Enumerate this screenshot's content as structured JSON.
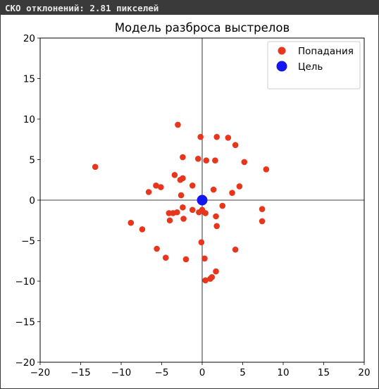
{
  "window": {
    "status_text": "СКО отклонений: 2.81 пикселей"
  },
  "colors": {
    "hits": "#e8361c",
    "target": "#1616f0",
    "titlebar": "#3a3a3a"
  },
  "chart_data": {
    "type": "scatter",
    "title": "Модель разброса выстрелов",
    "xlabel": "",
    "ylabel": "",
    "xlim": [
      -20,
      20
    ],
    "ylim": [
      -20,
      20
    ],
    "xticks": [
      -20,
      -15,
      -10,
      -5,
      0,
      5,
      10,
      15,
      20
    ],
    "yticks": [
      -20,
      -15,
      -10,
      -5,
      0,
      5,
      10,
      15,
      20
    ],
    "grid": false,
    "axis_lines_at_zero": true,
    "legend": {
      "placement": "top-right",
      "entries": [
        "Попадания",
        "Цель"
      ]
    },
    "series": [
      {
        "name": "Попадания",
        "points": [
          [
            -13.2,
            4.1
          ],
          [
            -8.8,
            -2.8
          ],
          [
            -7.4,
            -3.6
          ],
          [
            -6.6,
            1.0
          ],
          [
            -5.7,
            1.8
          ],
          [
            -5.1,
            1.6
          ],
          [
            -5.6,
            -6.0
          ],
          [
            -4.5,
            -7.1
          ],
          [
            -4.1,
            -1.6
          ],
          [
            -4.0,
            -2.5
          ],
          [
            -3.6,
            -1.6
          ],
          [
            -3.4,
            3.1
          ],
          [
            -3.1,
            -1.5
          ],
          [
            -3.0,
            9.3
          ],
          [
            -2.7,
            2.5
          ],
          [
            -2.6,
            0.6
          ],
          [
            -2.4,
            2.7
          ],
          [
            -2.4,
            5.3
          ],
          [
            -2.4,
            -0.9
          ],
          [
            -2.3,
            -2.3
          ],
          [
            -2.0,
            -7.3
          ],
          [
            -1.2,
            1.8
          ],
          [
            -1.2,
            -1.2
          ],
          [
            -0.5,
            5.1
          ],
          [
            -0.4,
            -1.5
          ],
          [
            -0.2,
            7.8
          ],
          [
            -0.1,
            -5.2
          ],
          [
            0.0,
            -1.2
          ],
          [
            0.3,
            -7.2
          ],
          [
            0.4,
            -9.9
          ],
          [
            0.4,
            -1.6
          ],
          [
            0.5,
            4.9
          ],
          [
            1.0,
            -9.7
          ],
          [
            1.2,
            -9.5
          ],
          [
            1.4,
            1.3
          ],
          [
            1.6,
            4.9
          ],
          [
            1.7,
            -2.0
          ],
          [
            1.8,
            -3.2
          ],
          [
            1.7,
            -8.8
          ],
          [
            1.8,
            7.8
          ],
          [
            2.5,
            -0.7
          ],
          [
            3.2,
            7.7
          ],
          [
            3.7,
            0.9
          ],
          [
            4.1,
            6.8
          ],
          [
            4.1,
            -6.1
          ],
          [
            4.6,
            1.7
          ],
          [
            5.2,
            4.7
          ],
          [
            7.4,
            -1.1
          ],
          [
            7.4,
            -2.6
          ],
          [
            7.9,
            3.8
          ]
        ]
      },
      {
        "name": "Цель",
        "points": [
          [
            0,
            0
          ]
        ]
      }
    ]
  }
}
